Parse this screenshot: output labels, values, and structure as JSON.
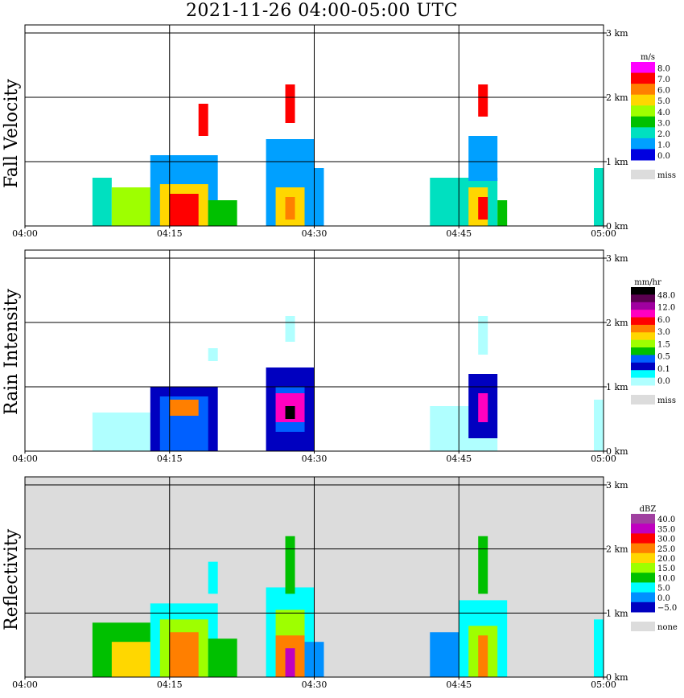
{
  "title": "2021-11-26   04:00-05:00 UTC",
  "chart_data": [
    {
      "type": "heatmap",
      "panel_label": "Fall Velocity",
      "x_ticks": [
        "04:00",
        "04:15",
        "04:30",
        "04:45",
        "05:00"
      ],
      "y_ticks": [
        "0 km",
        "1 km",
        "2 km",
        "3 km"
      ],
      "colorbar": {
        "unit": "m/s",
        "labels": [
          "8.0",
          "7.0",
          "6.0",
          "5.0",
          "4.0",
          "3.0",
          "2.0",
          "1.0",
          "0.0"
        ],
        "colors": [
          "#ff00ff",
          "#ff0000",
          "#ff7f00",
          "#ffd700",
          "#9eff00",
          "#00c000",
          "#00e0c0",
          "#00a0ff",
          "#0000e0"
        ],
        "missing_label": "miss",
        "missing_color": "#dcdcdc"
      },
      "background": "#ffffff",
      "cells": [
        {
          "t0": "04:07",
          "t1": "04:09",
          "z0": 0.0,
          "z1": 0.75,
          "value": "2.0"
        },
        {
          "t0": "04:09",
          "t1": "04:14",
          "z0": 0.0,
          "z1": 0.6,
          "value": "4.0"
        },
        {
          "t0": "04:13",
          "t1": "04:20",
          "z0": 0.0,
          "z1": 1.1,
          "value": "1.0"
        },
        {
          "t0": "04:14",
          "t1": "04:19",
          "z0": 0.0,
          "z1": 0.65,
          "value": "5.0"
        },
        {
          "t0": "04:15",
          "t1": "04:18",
          "z0": 0.0,
          "z1": 0.5,
          "value": "7.0"
        },
        {
          "t0": "04:18",
          "t1": "04:19",
          "z0": 1.4,
          "z1": 1.9,
          "value": "7.0"
        },
        {
          "t0": "04:19",
          "t1": "04:22",
          "z0": 0.0,
          "z1": 0.4,
          "value": "3.0"
        },
        {
          "t0": "04:25",
          "t1": "04:30",
          "z0": 0.0,
          "z1": 1.35,
          "value": "1.0"
        },
        {
          "t0": "04:26",
          "t1": "04:29",
          "z0": 0.0,
          "z1": 0.6,
          "value": "5.0"
        },
        {
          "t0": "04:27",
          "t1": "04:28",
          "z0": 0.1,
          "z1": 0.45,
          "value": "6.0"
        },
        {
          "t0": "04:27",
          "t1": "04:28",
          "z0": 1.6,
          "z1": 2.2,
          "value": "7.0"
        },
        {
          "t0": "04:29",
          "t1": "04:31",
          "z0": 0.0,
          "z1": 0.9,
          "value": "1.0"
        },
        {
          "t0": "04:42",
          "t1": "04:49",
          "z0": 0.0,
          "z1": 0.75,
          "value": "2.0"
        },
        {
          "t0": "04:46",
          "t1": "04:49",
          "z0": 0.7,
          "z1": 1.4,
          "value": "1.0"
        },
        {
          "t0": "04:46",
          "t1": "04:48",
          "z0": 0.0,
          "z1": 0.6,
          "value": "5.0"
        },
        {
          "t0": "04:47",
          "t1": "04:48",
          "z0": 0.1,
          "z1": 0.45,
          "value": "7.0"
        },
        {
          "t0": "04:47",
          "t1": "04:48",
          "z0": 1.7,
          "z1": 2.2,
          "value": "7.0"
        },
        {
          "t0": "04:49",
          "t1": "04:50",
          "z0": 0.0,
          "z1": 0.4,
          "value": "3.0"
        },
        {
          "t0": "04:59",
          "t1": "05:00",
          "z0": 0.0,
          "z1": 0.9,
          "value": "2.0"
        }
      ]
    },
    {
      "type": "heatmap",
      "panel_label": "Rain Intensity",
      "x_ticks": [
        "04:00",
        "04:15",
        "04:30",
        "04:45",
        "05:00"
      ],
      "y_ticks": [
        "0 km",
        "1 km",
        "2 km",
        "3 km"
      ],
      "colorbar": {
        "unit": "mm/hr",
        "labels": [
          "48.0",
          "12.0",
          "6.0",
          "3.0",
          "1.5",
          "0.5",
          "0.1",
          "0.0"
        ],
        "colors": [
          "#000000",
          "#5a0050",
          "#a000a0",
          "#ff00c0",
          "#ff0000",
          "#ff7f00",
          "#ffd700",
          "#9eff00",
          "#00c000",
          "#0060ff",
          "#0000c0",
          "#00ffff",
          "#b0ffff"
        ],
        "missing_label": "miss",
        "missing_color": "#dcdcdc"
      },
      "background": "#ffffff",
      "cells": [
        {
          "t0": "04:07",
          "t1": "04:13",
          "z0": 0.0,
          "z1": 0.6,
          "value": "0.0"
        },
        {
          "t0": "04:13",
          "t1": "04:20",
          "z0": 0.0,
          "z1": 1.0,
          "value": "0.1"
        },
        {
          "t0": "04:14",
          "t1": "04:19",
          "z0": 0.0,
          "z1": 0.85,
          "value": "0.5"
        },
        {
          "t0": "04:15",
          "t1": "04:18",
          "z0": 0.55,
          "z1": 0.8,
          "value": "3.0"
        },
        {
          "t0": "04:19",
          "t1": "04:20",
          "z0": 1.4,
          "z1": 1.6,
          "value": "0.0"
        },
        {
          "t0": "04:25",
          "t1": "04:30",
          "z0": 0.0,
          "z1": 1.3,
          "value": "0.1"
        },
        {
          "t0": "04:26",
          "t1": "04:29",
          "z0": 0.3,
          "z1": 1.0,
          "value": "0.5"
        },
        {
          "t0": "04:26",
          "t1": "04:29",
          "z0": 0.45,
          "z1": 0.9,
          "value": "6.0"
        },
        {
          "t0": "04:27",
          "t1": "04:28",
          "z0": 0.5,
          "z1": 0.7,
          "value": "48.0"
        },
        {
          "t0": "04:27",
          "t1": "04:28",
          "z0": 1.7,
          "z1": 2.1,
          "value": "0.0"
        },
        {
          "t0": "04:42",
          "t1": "04:49",
          "z0": 0.0,
          "z1": 0.7,
          "value": "0.0"
        },
        {
          "t0": "04:46",
          "t1": "04:49",
          "z0": 0.2,
          "z1": 1.2,
          "value": "0.1"
        },
        {
          "t0": "04:47",
          "t1": "04:48",
          "z0": 0.45,
          "z1": 0.9,
          "value": "6.0"
        },
        {
          "t0": "04:47",
          "t1": "04:48",
          "z0": 1.5,
          "z1": 2.1,
          "value": "0.0"
        },
        {
          "t0": "04:59",
          "t1": "05:00",
          "z0": 0.0,
          "z1": 0.8,
          "value": "0.0"
        }
      ]
    },
    {
      "type": "heatmap",
      "panel_label": "Reflectivity",
      "x_ticks": [
        "04:00",
        "04:15",
        "04:30",
        "04:45",
        "05:00"
      ],
      "y_ticks": [
        "0 km",
        "1 km",
        "2 km",
        "3 km"
      ],
      "colorbar": {
        "unit": "dBZ",
        "labels": [
          "40.0",
          "35.0",
          "30.0",
          "25.0",
          "20.0",
          "15.0",
          "10.0",
          "5.0",
          "0.0",
          "−5.0"
        ],
        "colors": [
          "#a040a0",
          "#c000c0",
          "#ff0000",
          "#ff7f00",
          "#ffd700",
          "#9eff00",
          "#00c000",
          "#00ffff",
          "#0090ff",
          "#0000c0"
        ],
        "missing_label": "none",
        "missing_color": "#dcdcdc"
      },
      "background": "#dcdcdc",
      "cells": [
        {
          "t0": "04:07",
          "t1": "04:14",
          "z0": 0.0,
          "z1": 0.85,
          "value": "10.0"
        },
        {
          "t0": "04:09",
          "t1": "04:14",
          "z0": 0.0,
          "z1": 0.55,
          "value": "20.0"
        },
        {
          "t0": "04:13",
          "t1": "04:20",
          "z0": 0.0,
          "z1": 1.15,
          "value": "5.0"
        },
        {
          "t0": "04:14",
          "t1": "04:19",
          "z0": 0.0,
          "z1": 0.9,
          "value": "15.0"
        },
        {
          "t0": "04:15",
          "t1": "04:18",
          "z0": 0.0,
          "z1": 0.7,
          "value": "25.0"
        },
        {
          "t0": "04:19",
          "t1": "04:20",
          "z0": 1.3,
          "z1": 1.8,
          "value": "5.0"
        },
        {
          "t0": "04:19",
          "t1": "04:22",
          "z0": 0.0,
          "z1": 0.6,
          "value": "10.0"
        },
        {
          "t0": "04:25",
          "t1": "04:30",
          "z0": 0.0,
          "z1": 1.4,
          "value": "5.0"
        },
        {
          "t0": "04:26",
          "t1": "04:29",
          "z0": 0.0,
          "z1": 1.05,
          "value": "15.0"
        },
        {
          "t0": "04:26",
          "t1": "04:29",
          "z0": 0.0,
          "z1": 0.65,
          "value": "25.0"
        },
        {
          "t0": "04:27",
          "t1": "04:28",
          "z0": 0.0,
          "z1": 0.45,
          "value": "35.0"
        },
        {
          "t0": "04:27",
          "t1": "04:28",
          "z0": 1.3,
          "z1": 2.2,
          "value": "10.0"
        },
        {
          "t0": "04:29",
          "t1": "04:31",
          "z0": 0.0,
          "z1": 0.55,
          "value": "0.0"
        },
        {
          "t0": "04:42",
          "t1": "04:46",
          "z0": 0.0,
          "z1": 0.7,
          "value": "0.0"
        },
        {
          "t0": "04:45",
          "t1": "04:50",
          "z0": 0.0,
          "z1": 1.2,
          "value": "5.0"
        },
        {
          "t0": "04:46",
          "t1": "04:49",
          "z0": 0.0,
          "z1": 0.8,
          "value": "15.0"
        },
        {
          "t0": "04:47",
          "t1": "04:48",
          "z0": 0.0,
          "z1": 0.65,
          "value": "25.0"
        },
        {
          "t0": "04:47",
          "t1": "04:48",
          "z0": 1.3,
          "z1": 2.2,
          "value": "10.0"
        },
        {
          "t0": "04:59",
          "t1": "05:00",
          "z0": 0.0,
          "z1": 0.9,
          "value": "5.0"
        }
      ]
    }
  ]
}
